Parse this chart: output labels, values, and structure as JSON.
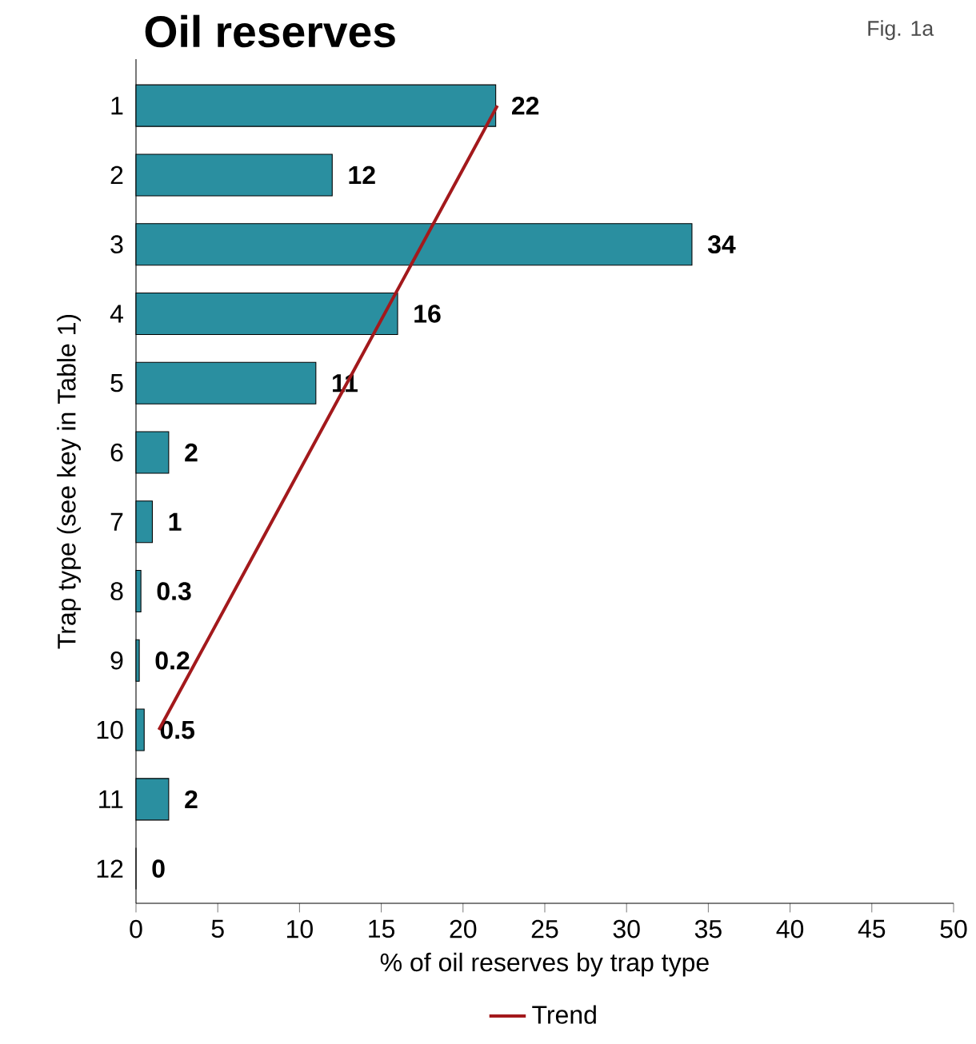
{
  "chart_data": {
    "type": "bar",
    "orientation": "horizontal",
    "title": "Oil reserves",
    "annotations": [
      "Fig. 1a"
    ],
    "xlabel": "% of oil reserves by trap type",
    "ylabel": "Trap type (see key in Table 1)",
    "categories": [
      "1",
      "2",
      "3",
      "4",
      "5",
      "6",
      "7",
      "8",
      "9",
      "10",
      "11",
      "12"
    ],
    "series": [
      {
        "color": "#2a8fa0",
        "values": [
          22,
          12,
          34,
          16,
          11,
          2,
          1,
          0.3,
          0.2,
          0.5,
          2,
          0
        ],
        "value_labels": [
          "22",
          "12",
          "34",
          "16",
          "11",
          "2",
          "1",
          "0.3",
          "0.2",
          "0.5",
          "2",
          "0"
        ]
      },
      {
        "name": "Trend",
        "type": "line",
        "color": "#a3191c",
        "values": [
          22.1,
          19.8,
          17.5,
          15.2,
          12.9,
          10.6,
          8.3,
          6.0,
          3.7,
          1.4,
          null,
          null
        ]
      }
    ],
    "xlim": [
      0,
      50
    ],
    "xticks": [
      0,
      5,
      10,
      15,
      20,
      25,
      30,
      35,
      40,
      45,
      50
    ],
    "legend": "bottom"
  }
}
